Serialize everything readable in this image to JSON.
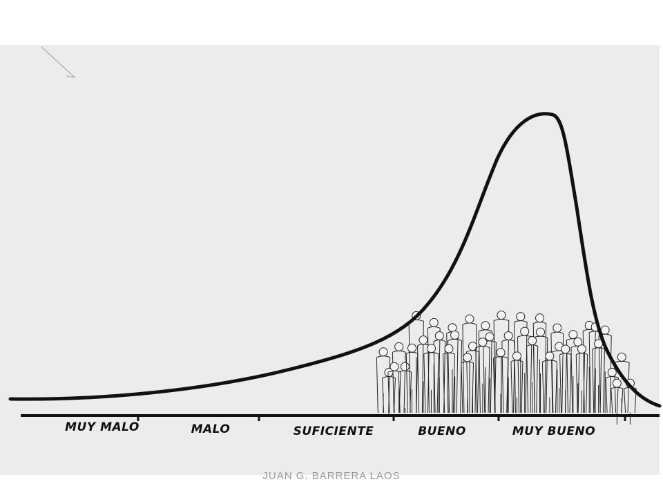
{
  "axis": {
    "labels": [
      "MUY MALO",
      "MALO",
      "SUFICIENTE",
      "BUENO",
      "MUY BUENO"
    ]
  },
  "credit": "JUAN G. BARRERA LAOS"
}
